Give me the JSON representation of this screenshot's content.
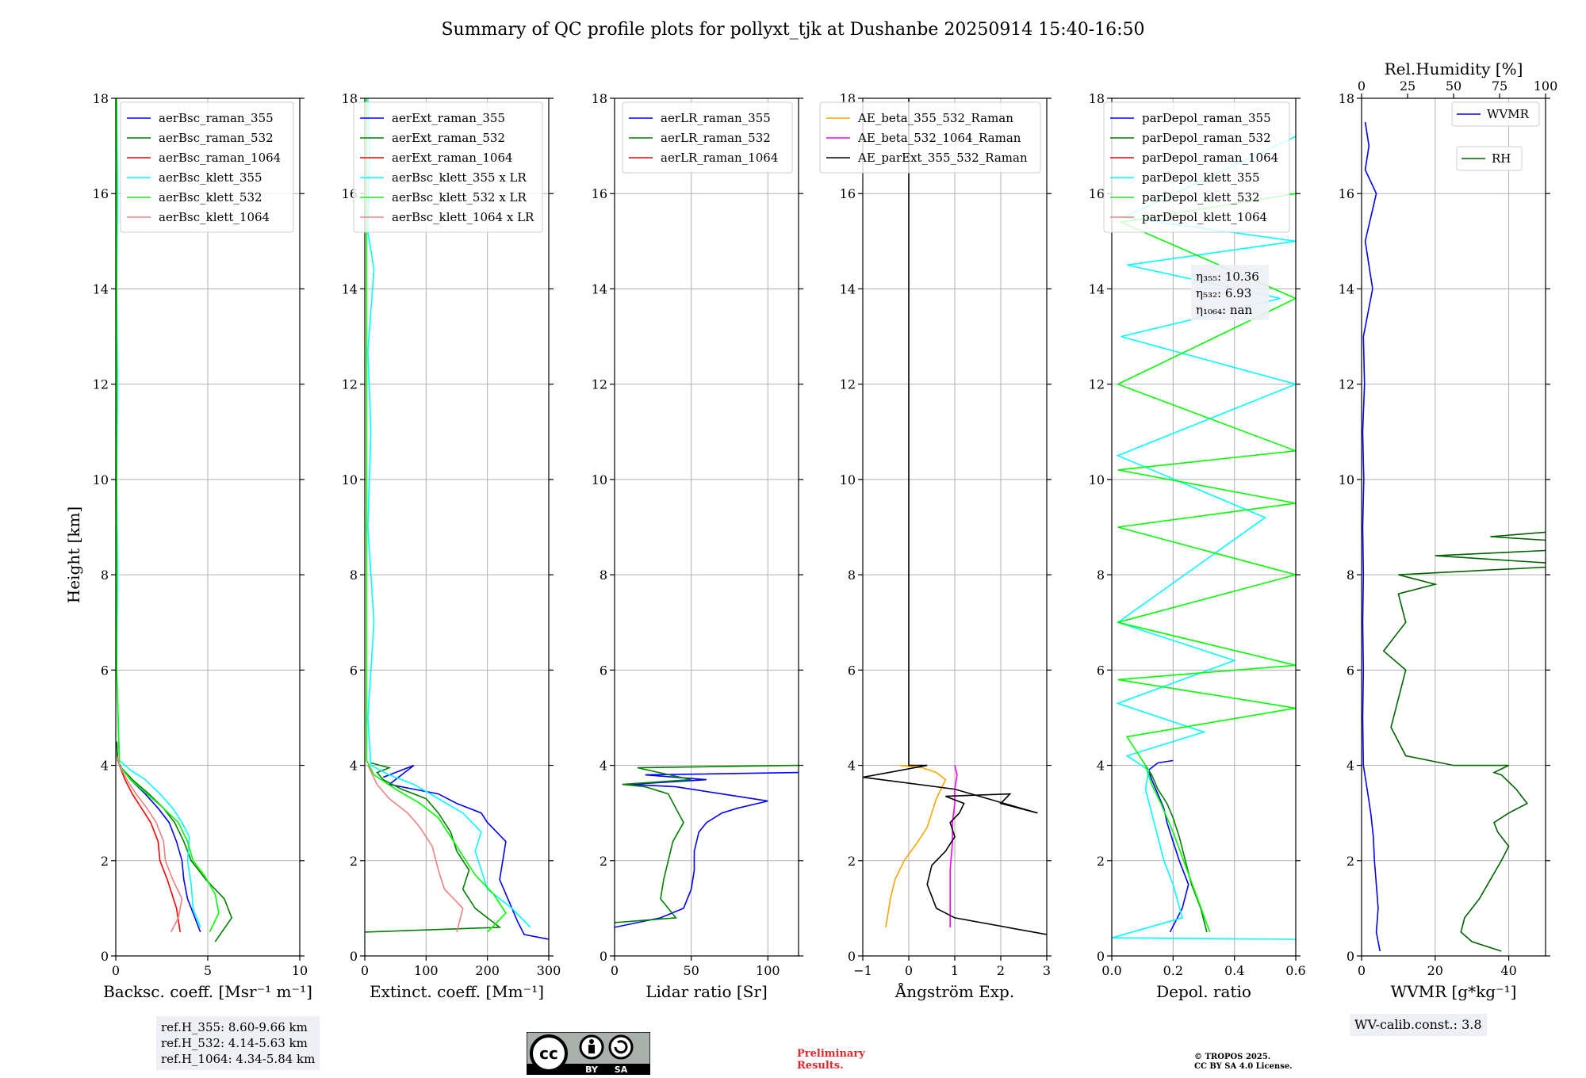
{
  "title": "Summary of QC profile plots for pollyxt_tjk at Dushanbe 20250914 15:40-16:50",
  "y_label": "Height [km]",
  "ref_heights": [
    "ref.H_355: 8.60-9.66 km",
    "ref.H_532: 4.14-5.63 km",
    "ref.H_1064: 4.34-5.84 km"
  ],
  "wv_calib": "WV-calib.const.: 3.8",
  "preliminary": [
    "Preliminary",
    "Results."
  ],
  "copyright": [
    "© TROPOS 2025.",
    "CC BY SA 4.0 License."
  ],
  "license_logo_text": [
    "BY",
    "SA"
  ],
  "chart_data": [
    {
      "type": "line",
      "xlabel": "Backsc. coeff. [Msr⁻¹ m⁻¹]",
      "xlim": [
        0,
        10
      ],
      "xticks": [
        0,
        5,
        10
      ],
      "ylim": [
        0,
        18
      ],
      "yticks": [
        0,
        2,
        4,
        6,
        8,
        10,
        12,
        14,
        16,
        18
      ],
      "grid": true,
      "legend_position": "top-right",
      "series": [
        {
          "name": "aerBsc_raman_355",
          "color": "#0000ff",
          "x": [
            4.6,
            4.3,
            3.9,
            3.7,
            3.6,
            3.3,
            2.9,
            2.3,
            1.6,
            0.8,
            0.3,
            0.1,
            0.05
          ],
          "y": [
            0.5,
            0.8,
            1.2,
            1.6,
            2.0,
            2.4,
            2.8,
            3.1,
            3.4,
            3.7,
            3.95,
            4.1,
            4.5
          ]
        },
        {
          "name": "aerBsc_raman_532",
          "color": "#008000",
          "x": [
            5.4,
            6.3,
            5.9,
            4.9,
            4.1,
            3.7,
            3.2,
            2.6,
            1.8,
            0.9,
            0.3,
            0.1,
            0.05
          ],
          "y": [
            0.3,
            0.8,
            1.2,
            1.6,
            2.0,
            2.4,
            2.8,
            3.1,
            3.4,
            3.7,
            3.95,
            4.1,
            4.5
          ]
        },
        {
          "name": "aerBsc_raman_1064",
          "color": "#ff0000",
          "x": [
            3.5,
            3.3,
            2.8,
            2.4,
            2.3,
            1.9,
            1.4,
            0.9,
            0.5,
            0.2,
            0.05
          ],
          "y": [
            0.5,
            1.0,
            1.6,
            2.0,
            2.4,
            2.8,
            3.1,
            3.4,
            3.7,
            4.0,
            4.2
          ]
        },
        {
          "name": "aerBsc_klett_355",
          "color": "#00ffff",
          "x": [
            4.6,
            4.2,
            4.1,
            3.9,
            4.0,
            3.6,
            3.1,
            2.4,
            1.6,
            0.8,
            0.2,
            0.05,
            0.1,
            0.05,
            0.1,
            0.05,
            0.1,
            0.05
          ],
          "y": [
            0.6,
            1.0,
            1.5,
            2.0,
            2.5,
            2.8,
            3.1,
            3.4,
            3.7,
            3.9,
            4.1,
            6,
            8,
            10,
            12,
            14,
            16,
            18
          ]
        },
        {
          "name": "aerBsc_klett_532",
          "color": "#00ff00",
          "x": [
            5.1,
            5.6,
            5.4,
            4.8,
            4.2,
            3.9,
            3.4,
            2.6,
            1.7,
            0.8,
            0.2,
            0.05,
            0.05,
            0.05
          ],
          "y": [
            0.5,
            0.9,
            1.3,
            1.7,
            2.0,
            2.4,
            2.8,
            3.1,
            3.4,
            3.7,
            4.0,
            6,
            10,
            18
          ]
        },
        {
          "name": "aerBsc_klett_1064",
          "color": "#f08080",
          "x": [
            3.0,
            3.4,
            3.6,
            3.1,
            2.7,
            2.6,
            2.2,
            1.7,
            1.1,
            0.6,
            0.2,
            0.05
          ],
          "y": [
            0.5,
            0.8,
            1.2,
            1.6,
            2.0,
            2.4,
            2.8,
            3.1,
            3.4,
            3.7,
            4.0,
            4.2
          ]
        }
      ]
    },
    {
      "type": "line",
      "xlabel": "Extinct. coeff. [Mm⁻¹]",
      "xlim": [
        0,
        300
      ],
      "xticks": [
        0,
        100,
        200,
        300
      ],
      "ylim": [
        0,
        18
      ],
      "yticks": [
        0,
        2,
        4,
        6,
        8,
        10,
        12,
        14,
        16,
        18
      ],
      "grid": true,
      "legend_position": "top-right",
      "series": [
        {
          "name": "aerExt_raman_355",
          "color": "#0000ff",
          "x": [
            300,
            260,
            250,
            240,
            230,
            220,
            225,
            230,
            215,
            200,
            190,
            150,
            120,
            80,
            40,
            60,
            80,
            60,
            30
          ],
          "y": [
            0.35,
            0.45,
            0.7,
            1.0,
            1.3,
            1.6,
            2.0,
            2.4,
            2.6,
            2.8,
            3.0,
            3.2,
            3.4,
            3.5,
            3.6,
            3.8,
            4.0,
            3.9,
            3.75
          ]
        },
        {
          "name": "aerExt_raman_532",
          "color": "#008000",
          "x": [
            0,
            220,
            180,
            160,
            170,
            150,
            140,
            120,
            100,
            60,
            30,
            20,
            40,
            10
          ],
          "y": [
            0.5,
            0.6,
            1.0,
            1.4,
            1.8,
            2.2,
            2.6,
            3.0,
            3.3,
            3.5,
            3.7,
            3.85,
            3.95,
            4.05
          ]
        },
        {
          "name": "aerExt_raman_1064",
          "color": "#ff0000",
          "x": [
            0,
            0
          ],
          "y": [
            0,
            0
          ]
        },
        {
          "name": "aerBsc_klett_355 x LR",
          "color": "#00ffff",
          "x": [
            270,
            240,
            200,
            190,
            180,
            190,
            160,
            120,
            80,
            40,
            10,
            5,
            15,
            5,
            10,
            5,
            15,
            5,
            8,
            5
          ],
          "y": [
            0.6,
            1.0,
            1.4,
            1.8,
            2.2,
            2.6,
            3.0,
            3.3,
            3.6,
            3.8,
            4.0,
            5,
            7,
            9,
            11,
            12.7,
            14.4,
            15.2,
            17,
            18
          ]
        },
        {
          "name": "aerBsc_klett_532 x LR",
          "color": "#00ff00",
          "x": [
            200,
            230,
            210,
            180,
            160,
            140,
            120,
            90,
            50,
            15,
            3,
            3
          ],
          "y": [
            0.5,
            0.9,
            1.3,
            1.7,
            2.1,
            2.5,
            2.9,
            3.2,
            3.5,
            3.8,
            4.1,
            18
          ]
        },
        {
          "name": "aerBsc_klett_1064 x LR",
          "color": "#f08080",
          "x": [
            150,
            160,
            130,
            120,
            110,
            90,
            70,
            40,
            20,
            5
          ],
          "y": [
            0.5,
            1.0,
            1.4,
            1.8,
            2.3,
            2.7,
            3.0,
            3.3,
            3.6,
            4.0
          ]
        }
      ]
    },
    {
      "type": "line",
      "xlabel": "Lidar ratio [Sr]",
      "xlim": [
        0,
        120
      ],
      "xticks": [
        0,
        50,
        100
      ],
      "ylim": [
        0,
        18
      ],
      "yticks": [
        0,
        2,
        4,
        6,
        8,
        10,
        12,
        14,
        16,
        18
      ],
      "grid": true,
      "legend_position": "top-right",
      "series": [
        {
          "name": "aerLR_raman_355",
          "color": "#0000ff",
          "x": [
            0,
            30,
            45,
            50,
            52,
            52,
            55,
            60,
            70,
            80,
            100,
            70,
            40,
            10,
            60,
            20,
            120
          ],
          "y": [
            0.6,
            0.8,
            1.0,
            1.4,
            1.8,
            2.2,
            2.6,
            2.8,
            3.0,
            3.1,
            3.25,
            3.4,
            3.55,
            3.6,
            3.7,
            3.8,
            3.85
          ]
        },
        {
          "name": "aerLR_raman_532",
          "color": "#008000",
          "x": [
            0,
            40,
            30,
            32,
            35,
            38,
            45,
            40,
            35,
            20,
            5,
            50,
            15,
            120
          ],
          "y": [
            0.7,
            0.8,
            1.2,
            1.6,
            2.0,
            2.4,
            2.8,
            3.1,
            3.4,
            3.55,
            3.6,
            3.7,
            3.95,
            4.0
          ]
        },
        {
          "name": "aerLR_raman_1064",
          "color": "#ff0000",
          "x": [
            0,
            0
          ],
          "y": [
            0,
            0
          ]
        }
      ]
    },
    {
      "type": "line",
      "xlabel": "Ångström Exp.",
      "xlim": [
        -1,
        3
      ],
      "xticks": [
        -1,
        0,
        1,
        2,
        3
      ],
      "ylim": [
        0,
        18
      ],
      "yticks": [
        0,
        2,
        4,
        6,
        8,
        10,
        12,
        14,
        16,
        18
      ],
      "grid": true,
      "legend_position": "top-right",
      "series": [
        {
          "name": "AE_beta_355_532_Raman",
          "color": "#ffa500",
          "x": [
            -0.5,
            -0.4,
            -0.3,
            -0.1,
            0.2,
            0.4,
            0.5,
            0.6,
            0.7,
            0.8,
            0.6,
            0.3,
            -0.2
          ],
          "y": [
            0.6,
            1.2,
            1.6,
            2.0,
            2.4,
            2.7,
            3.0,
            3.3,
            3.5,
            3.7,
            3.85,
            3.95,
            4.0
          ]
        },
        {
          "name": "AE_beta_532_1064_Raman",
          "color": "#ff00ff",
          "x": [
            0.9,
            0.9,
            0.9,
            0.95,
            0.95,
            1.0,
            1.0,
            1.05,
            1.0
          ],
          "y": [
            0.6,
            1.2,
            1.8,
            2.4,
            2.8,
            3.2,
            3.5,
            3.8,
            4.0
          ]
        },
        {
          "name": "AE_parExt_355_532_Raman",
          "color": "#000000",
          "x": [
            3,
            1.0,
            0.6,
            0.4,
            0.5,
            0.8,
            1.0,
            0.9,
            1.1,
            1.2,
            0.8,
            2.2,
            2.0,
            2.8,
            1.0,
            -1.0,
            0.4,
            0.0,
            0.0
          ],
          "y": [
            0.45,
            0.8,
            1.0,
            1.5,
            1.9,
            2.2,
            2.5,
            2.8,
            3.0,
            3.2,
            3.35,
            3.4,
            3.2,
            3.0,
            3.5,
            3.75,
            4.0,
            4.0,
            18
          ]
        }
      ]
    },
    {
      "type": "line",
      "xlabel": "Depol. ratio",
      "xlim": [
        0,
        0.6
      ],
      "xticks": [
        0.0,
        0.2,
        0.4,
        0.6
      ],
      "ylim": [
        0,
        18
      ],
      "yticks": [
        0,
        2,
        4,
        6,
        8,
        10,
        12,
        14,
        16,
        18
      ],
      "grid": true,
      "legend_position": "top-right",
      "annotation": [
        "η₃₅₅: 10.36",
        "η₅₃₂: 6.93",
        "η₁₀₆₄: nan"
      ],
      "series": [
        {
          "name": "parDepol_raman_355",
          "color": "#0000ff",
          "x": [
            0.19,
            0.23,
            0.25,
            0.22,
            0.2,
            0.18,
            0.17,
            0.15,
            0.13,
            0.12,
            0.15,
            0.2
          ],
          "y": [
            0.5,
            1.0,
            1.5,
            2.0,
            2.4,
            2.8,
            3.1,
            3.4,
            3.7,
            3.9,
            4.05,
            4.1
          ]
        },
        {
          "name": "parDepol_raman_532",
          "color": "#008000",
          "x": [
            0.31,
            0.29,
            0.26,
            0.24,
            0.22,
            0.2,
            0.18,
            0.15,
            0.13,
            0.11,
            0.1
          ],
          "y": [
            0.5,
            1.0,
            1.5,
            2.0,
            2.5,
            2.9,
            3.2,
            3.5,
            3.8,
            4.0,
            4.1
          ]
        },
        {
          "name": "parDepol_raman_1064",
          "color": "#ff0000",
          "x": [
            0,
            0
          ],
          "y": [
            0,
            0
          ]
        },
        {
          "name": "parDepol_klett_355",
          "color": "#00ffff",
          "x": [
            0.6,
            0.0,
            0.23,
            0.2,
            0.17,
            0.15,
            0.13,
            0.11,
            0.12,
            0.05,
            0.3,
            0.02,
            0.4,
            0.02,
            0.5,
            0.02,
            0.6,
            0.03,
            0.55,
            0.05,
            0.6,
            0.04,
            0.6
          ],
          "y": [
            0.35,
            0.38,
            0.8,
            1.5,
            2.0,
            2.5,
            3.0,
            3.5,
            3.9,
            4.2,
            4.7,
            5.3,
            6.2,
            7.0,
            9.2,
            10.5,
            12.0,
            13.0,
            13.8,
            14.5,
            15.0,
            15.5,
            17.2
          ]
        },
        {
          "name": "parDepol_klett_532",
          "color": "#00ff00",
          "x": [
            0.32,
            0.28,
            0.24,
            0.2,
            0.16,
            0.13,
            0.11,
            0.05,
            0.6,
            0.02,
            0.6,
            0.02,
            0.6,
            0.02,
            0.6,
            0.02,
            0.6,
            0.02,
            0.6,
            0.03,
            0.6
          ],
          "y": [
            0.5,
            1.2,
            1.9,
            2.6,
            3.2,
            3.6,
            4.0,
            4.6,
            5.2,
            5.8,
            6.1,
            7.0,
            8.0,
            9.0,
            9.5,
            10.2,
            10.6,
            12.0,
            13.8,
            15.4,
            16.0
          ]
        },
        {
          "name": "parDepol_klett_1064",
          "color": "#f08080",
          "x": [
            0,
            0
          ],
          "y": [
            0,
            0
          ]
        }
      ]
    },
    {
      "type": "line",
      "xlabel": "WVMR [g*kg⁻¹]",
      "xlabel_top": "Rel.Humidity [%]",
      "xlim": [
        0,
        50
      ],
      "xticks": [
        0,
        20,
        40
      ],
      "xlim_top": [
        0,
        100
      ],
      "xticks_top": [
        0,
        25,
        50,
        75,
        100
      ],
      "ylim": [
        0,
        18
      ],
      "yticks": [
        0,
        2,
        4,
        6,
        8,
        10,
        12,
        14,
        16,
        18
      ],
      "grid": true,
      "legend_position": "top-right",
      "series": [
        {
          "name": "WVMR",
          "color": "#0000ff",
          "x": [
            5,
            4,
            4.5,
            4,
            3.5,
            3.2,
            2.5,
            1.5,
            0.5,
            0.3,
            0.5,
            0.3,
            0.5,
            0.3,
            0.6,
            0.3,
            0.8,
            0.5,
            3,
            1,
            4,
            1,
            2,
            1
          ],
          "y": [
            0.1,
            0.5,
            1.0,
            1.5,
            2.0,
            2.5,
            3.0,
            3.5,
            4.0,
            5.0,
            6.0,
            7.0,
            8.0,
            9.0,
            10.0,
            11.0,
            12.0,
            13.0,
            14.0,
            15.0,
            16.0,
            16.5,
            17.0,
            17.5
          ]
        },
        {
          "name": "RH",
          "color": "#006400",
          "x": [
            38,
            30,
            27,
            28,
            32,
            35,
            38,
            40,
            37,
            36,
            40,
            45,
            42,
            38,
            36,
            40,
            38,
            35,
            30,
            25,
            12,
            8,
            10,
            12,
            6,
            12,
            10,
            20,
            10,
            60,
            20,
            75,
            35,
            100,
            60
          ],
          "y": [
            0.1,
            0.3,
            0.5,
            0.8,
            1.2,
            1.6,
            2.0,
            2.3,
            2.6,
            2.8,
            3.0,
            3.2,
            3.5,
            3.8,
            3.85,
            4.0,
            4.0,
            4.0,
            4.0,
            4.0,
            4.2,
            4.8,
            5.4,
            6.0,
            6.4,
            7.0,
            7.6,
            7.8,
            8.0,
            8.2,
            8.4,
            8.6,
            8.8,
            9.2,
            9.5
          ]
        }
      ]
    }
  ]
}
